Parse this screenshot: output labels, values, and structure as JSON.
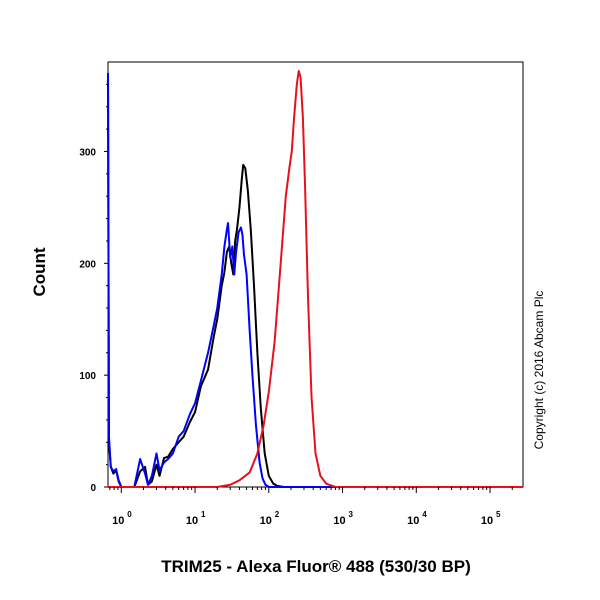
{
  "chart_data": {
    "type": "line",
    "title": "",
    "xlabel": "TRIM25 - Alexa Fluor® 488 (530/30 BP)",
    "ylabel": "Count",
    "x_scale": "log",
    "xlim": [
      0.66,
      280000
    ],
    "ylim": [
      0,
      380
    ],
    "x_ticks": [
      {
        "base": "10",
        "exp": "0",
        "value": 1
      },
      {
        "base": "10",
        "exp": "1",
        "value": 10
      },
      {
        "base": "10",
        "exp": "2",
        "value": 100
      },
      {
        "base": "10",
        "exp": "3",
        "value": 1000
      },
      {
        "base": "10",
        "exp": "4",
        "value": 10000
      },
      {
        "base": "10",
        "exp": "5",
        "value": 100000
      }
    ],
    "y_ticks": [
      {
        "label": "0",
        "value": 0
      },
      {
        "label": "100",
        "value": 100
      },
      {
        "label": "200",
        "value": 200
      },
      {
        "label": "300",
        "value": 300
      }
    ],
    "grid": false,
    "legend": "none",
    "series": [
      {
        "color": "#000000",
        "points": [
          [
            0.66,
            370
          ],
          [
            0.68,
            40
          ],
          [
            0.72,
            18
          ],
          [
            0.78,
            12
          ],
          [
            0.85,
            15
          ],
          [
            0.92,
            5
          ],
          [
            1.0,
            0
          ],
          [
            1.2,
            0
          ],
          [
            1.5,
            0
          ],
          [
            1.8,
            14
          ],
          [
            2.1,
            18
          ],
          [
            2.3,
            2
          ],
          [
            2.6,
            5
          ],
          [
            3.0,
            20
          ],
          [
            3.3,
            10
          ],
          [
            3.8,
            26
          ],
          [
            4.3,
            27
          ],
          [
            5.0,
            34
          ],
          [
            6.0,
            40
          ],
          [
            7.0,
            45
          ],
          [
            8.5,
            58
          ],
          [
            10,
            67
          ],
          [
            12,
            90
          ],
          [
            15,
            105
          ],
          [
            18,
            135
          ],
          [
            20,
            150
          ],
          [
            23,
            180
          ],
          [
            25,
            192
          ],
          [
            27,
            210
          ],
          [
            29,
            215
          ],
          [
            31,
            200
          ],
          [
            33,
            190
          ],
          [
            35,
            220
          ],
          [
            37,
            230
          ],
          [
            40,
            250
          ],
          [
            43,
            275
          ],
          [
            45,
            288
          ],
          [
            48,
            285
          ],
          [
            52,
            265
          ],
          [
            57,
            230
          ],
          [
            63,
            180
          ],
          [
            70,
            120
          ],
          [
            78,
            70
          ],
          [
            88,
            30
          ],
          [
            100,
            10
          ],
          [
            115,
            3
          ],
          [
            130,
            1
          ],
          [
            160,
            0
          ],
          [
            300000,
            0
          ]
        ]
      },
      {
        "color": "#0000ff",
        "points": [
          [
            0.66,
            370
          ],
          [
            0.68,
            45
          ],
          [
            0.72,
            18
          ],
          [
            0.78,
            14
          ],
          [
            0.85,
            16
          ],
          [
            0.92,
            6
          ],
          [
            1.0,
            0
          ],
          [
            1.2,
            0
          ],
          [
            1.5,
            0
          ],
          [
            1.8,
            25
          ],
          [
            2.1,
            12
          ],
          [
            2.3,
            2
          ],
          [
            2.6,
            10
          ],
          [
            3.0,
            30
          ],
          [
            3.3,
            15
          ],
          [
            3.8,
            22
          ],
          [
            4.3,
            25
          ],
          [
            5.0,
            30
          ],
          [
            6.0,
            45
          ],
          [
            7.0,
            50
          ],
          [
            8.5,
            65
          ],
          [
            10,
            75
          ],
          [
            12,
            95
          ],
          [
            15,
            120
          ],
          [
            18,
            145
          ],
          [
            20,
            160
          ],
          [
            23,
            190
          ],
          [
            25,
            215
          ],
          [
            27,
            230
          ],
          [
            28,
            236
          ],
          [
            30,
            205
          ],
          [
            32,
            215
          ],
          [
            34,
            190
          ],
          [
            36,
            210
          ],
          [
            39,
            228
          ],
          [
            42,
            232
          ],
          [
            44,
            225
          ],
          [
            46,
            208
          ],
          [
            50,
            190
          ],
          [
            55,
            140
          ],
          [
            60,
            100
          ],
          [
            67,
            55
          ],
          [
            75,
            22
          ],
          [
            82,
            8
          ],
          [
            90,
            2
          ],
          [
            100,
            0
          ],
          [
            300000,
            0
          ]
        ]
      },
      {
        "color": "#e8101a",
        "points": [
          [
            0.66,
            0
          ],
          [
            20,
            0
          ],
          [
            30,
            2
          ],
          [
            40,
            6
          ],
          [
            55,
            13
          ],
          [
            70,
            30
          ],
          [
            85,
            55
          ],
          [
            100,
            85
          ],
          [
            120,
            130
          ],
          [
            145,
            200
          ],
          [
            170,
            260
          ],
          [
            190,
            285
          ],
          [
            205,
            300
          ],
          [
            220,
            330
          ],
          [
            240,
            360
          ],
          [
            255,
            372
          ],
          [
            270,
            366
          ],
          [
            290,
            330
          ],
          [
            310,
            270
          ],
          [
            340,
            170
          ],
          [
            380,
            80
          ],
          [
            430,
            30
          ],
          [
            500,
            10
          ],
          [
            600,
            3
          ],
          [
            800,
            0
          ],
          [
            300000,
            0
          ]
        ]
      }
    ]
  },
  "annotations": {
    "copyright": "Copyright (c) 2016 Abcam Plc"
  },
  "colors": {
    "axis": "#000000",
    "background": "#ffffff"
  }
}
